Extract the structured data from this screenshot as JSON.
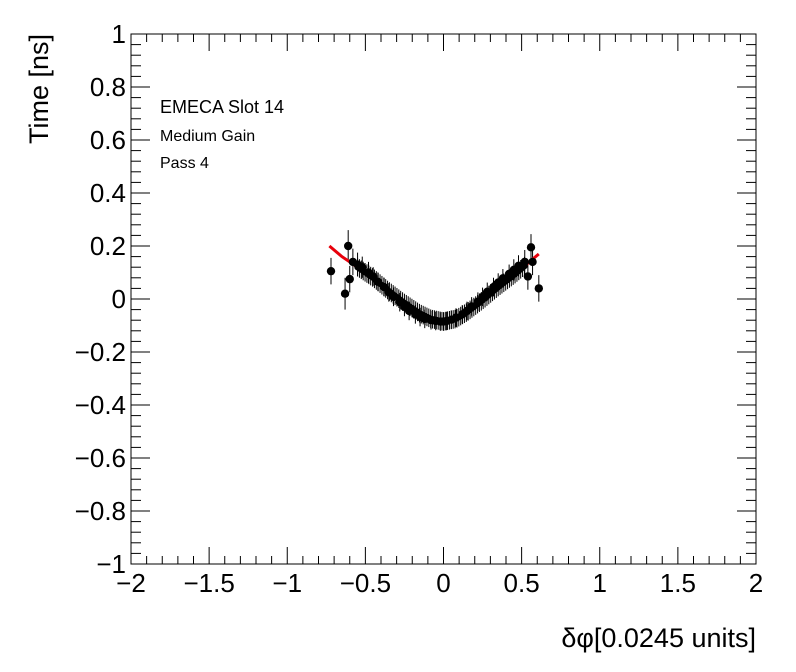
{
  "chart_data": {
    "type": "scatter",
    "title": "",
    "xlabel": "δφ[0.0245 units]",
    "ylabel": "Time [ns]",
    "xlim": [
      -2,
      2
    ],
    "ylim": [
      -1,
      1
    ],
    "x_ticks": [
      -2,
      -1.5,
      -1,
      -0.5,
      0,
      0.5,
      1,
      1.5,
      2
    ],
    "x_tick_labels": [
      "−2",
      "−1.5",
      "−1",
      "−0.5",
      "0",
      "0.5",
      "1",
      "1.5",
      "2"
    ],
    "y_ticks": [
      -1,
      -0.8,
      -0.6,
      -0.4,
      -0.2,
      0,
      0.2,
      0.4,
      0.6,
      0.8,
      1
    ],
    "y_tick_labels": [
      "−1",
      "−0.8",
      "−0.6",
      "−0.4",
      "−0.2",
      "0",
      "0.2",
      "0.4",
      "0.6",
      "0.8",
      "1"
    ],
    "grid": false,
    "annotations": [
      "EMECA Slot 14",
      "Medium Gain",
      "Pass 4"
    ],
    "colors": {
      "points": "#000000",
      "fit": "#e8000b"
    },
    "points": {
      "x": [
        -0.72,
        -0.63,
        -0.61,
        -0.6,
        -0.58,
        -0.55,
        -0.52,
        -0.48,
        -0.45,
        -0.42,
        -0.38,
        -0.35,
        -0.32,
        -0.28,
        -0.25,
        -0.22,
        -0.18,
        -0.15,
        -0.12,
        -0.08,
        -0.05,
        -0.02,
        0.0,
        0.02,
        0.05,
        0.08,
        0.12,
        0.15,
        0.18,
        0.22,
        0.25,
        0.28,
        0.32,
        0.35,
        0.38,
        0.42,
        0.45,
        0.48,
        0.52,
        0.54,
        0.56,
        0.57,
        0.61
      ],
      "y": [
        0.105,
        0.02,
        0.2,
        0.075,
        0.14,
        0.13,
        0.12,
        0.1,
        0.085,
        0.065,
        0.045,
        0.025,
        0.008,
        -0.012,
        -0.03,
        -0.045,
        -0.058,
        -0.068,
        -0.075,
        -0.08,
        -0.083,
        -0.085,
        -0.085,
        -0.083,
        -0.078,
        -0.07,
        -0.058,
        -0.045,
        -0.028,
        -0.01,
        0.008,
        0.027,
        0.045,
        0.062,
        0.078,
        0.095,
        0.11,
        0.125,
        0.14,
        0.085,
        0.195,
        0.14,
        0.04
      ],
      "err": [
        0.05,
        0.06,
        0.06,
        0.05,
        0.05,
        0.045,
        0.04,
        0.04,
        0.035,
        0.035,
        0.035,
        0.035,
        0.035,
        0.035,
        0.035,
        0.035,
        0.035,
        0.035,
        0.035,
        0.035,
        0.035,
        0.035,
        0.035,
        0.035,
        0.035,
        0.035,
        0.035,
        0.035,
        0.035,
        0.035,
        0.035,
        0.035,
        0.035,
        0.035,
        0.035,
        0.035,
        0.04,
        0.04,
        0.045,
        0.05,
        0.05,
        0.05,
        0.05
      ]
    },
    "fit": {
      "x": [
        -0.73,
        -0.65,
        -0.55,
        -0.45,
        -0.35,
        -0.25,
        -0.15,
        -0.08,
        0.0,
        0.08,
        0.15,
        0.25,
        0.35,
        0.45,
        0.55,
        0.61
      ],
      "y": [
        0.2,
        0.16,
        0.12,
        0.08,
        0.03,
        -0.015,
        -0.055,
        -0.075,
        -0.085,
        -0.075,
        -0.05,
        -0.005,
        0.045,
        0.09,
        0.14,
        0.17
      ]
    }
  }
}
